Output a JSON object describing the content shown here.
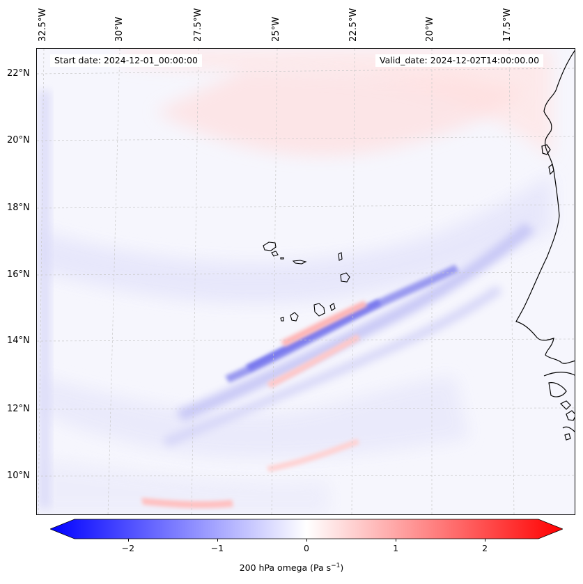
{
  "map": {
    "lon_ticks": [
      {
        "text": "32.5°W"
      },
      {
        "text": "30°W"
      },
      {
        "text": "27.5°W"
      },
      {
        "text": "25°W"
      },
      {
        "text": "22.5°W"
      },
      {
        "text": "20°W"
      },
      {
        "text": "17.5°W"
      }
    ],
    "lat_ticks": [
      {
        "text": "22°N"
      },
      {
        "text": "20°N"
      },
      {
        "text": "18°N"
      },
      {
        "text": "16°N"
      },
      {
        "text": "14°N"
      },
      {
        "text": "12°N"
      },
      {
        "text": "10°N"
      }
    ],
    "start_date": "Start date: 2024-12-01_00:00:00",
    "valid_date": "Valid_date: 2024-12-02T14:00:00.00",
    "field_colors": {
      "negative": "#0000ff",
      "zero": "#ffffff",
      "positive": "#ff0000"
    }
  },
  "colorbar": {
    "ticks": [
      "−2",
      "−1",
      "0",
      "1",
      "2"
    ],
    "tick_values": [
      -2,
      -1,
      0,
      1,
      2
    ],
    "range": [
      -2.6,
      2.6
    ],
    "extend": "both",
    "label_main": "200 hPa omega (Pa s",
    "label_exp": "−1",
    "label_end": ")"
  }
}
